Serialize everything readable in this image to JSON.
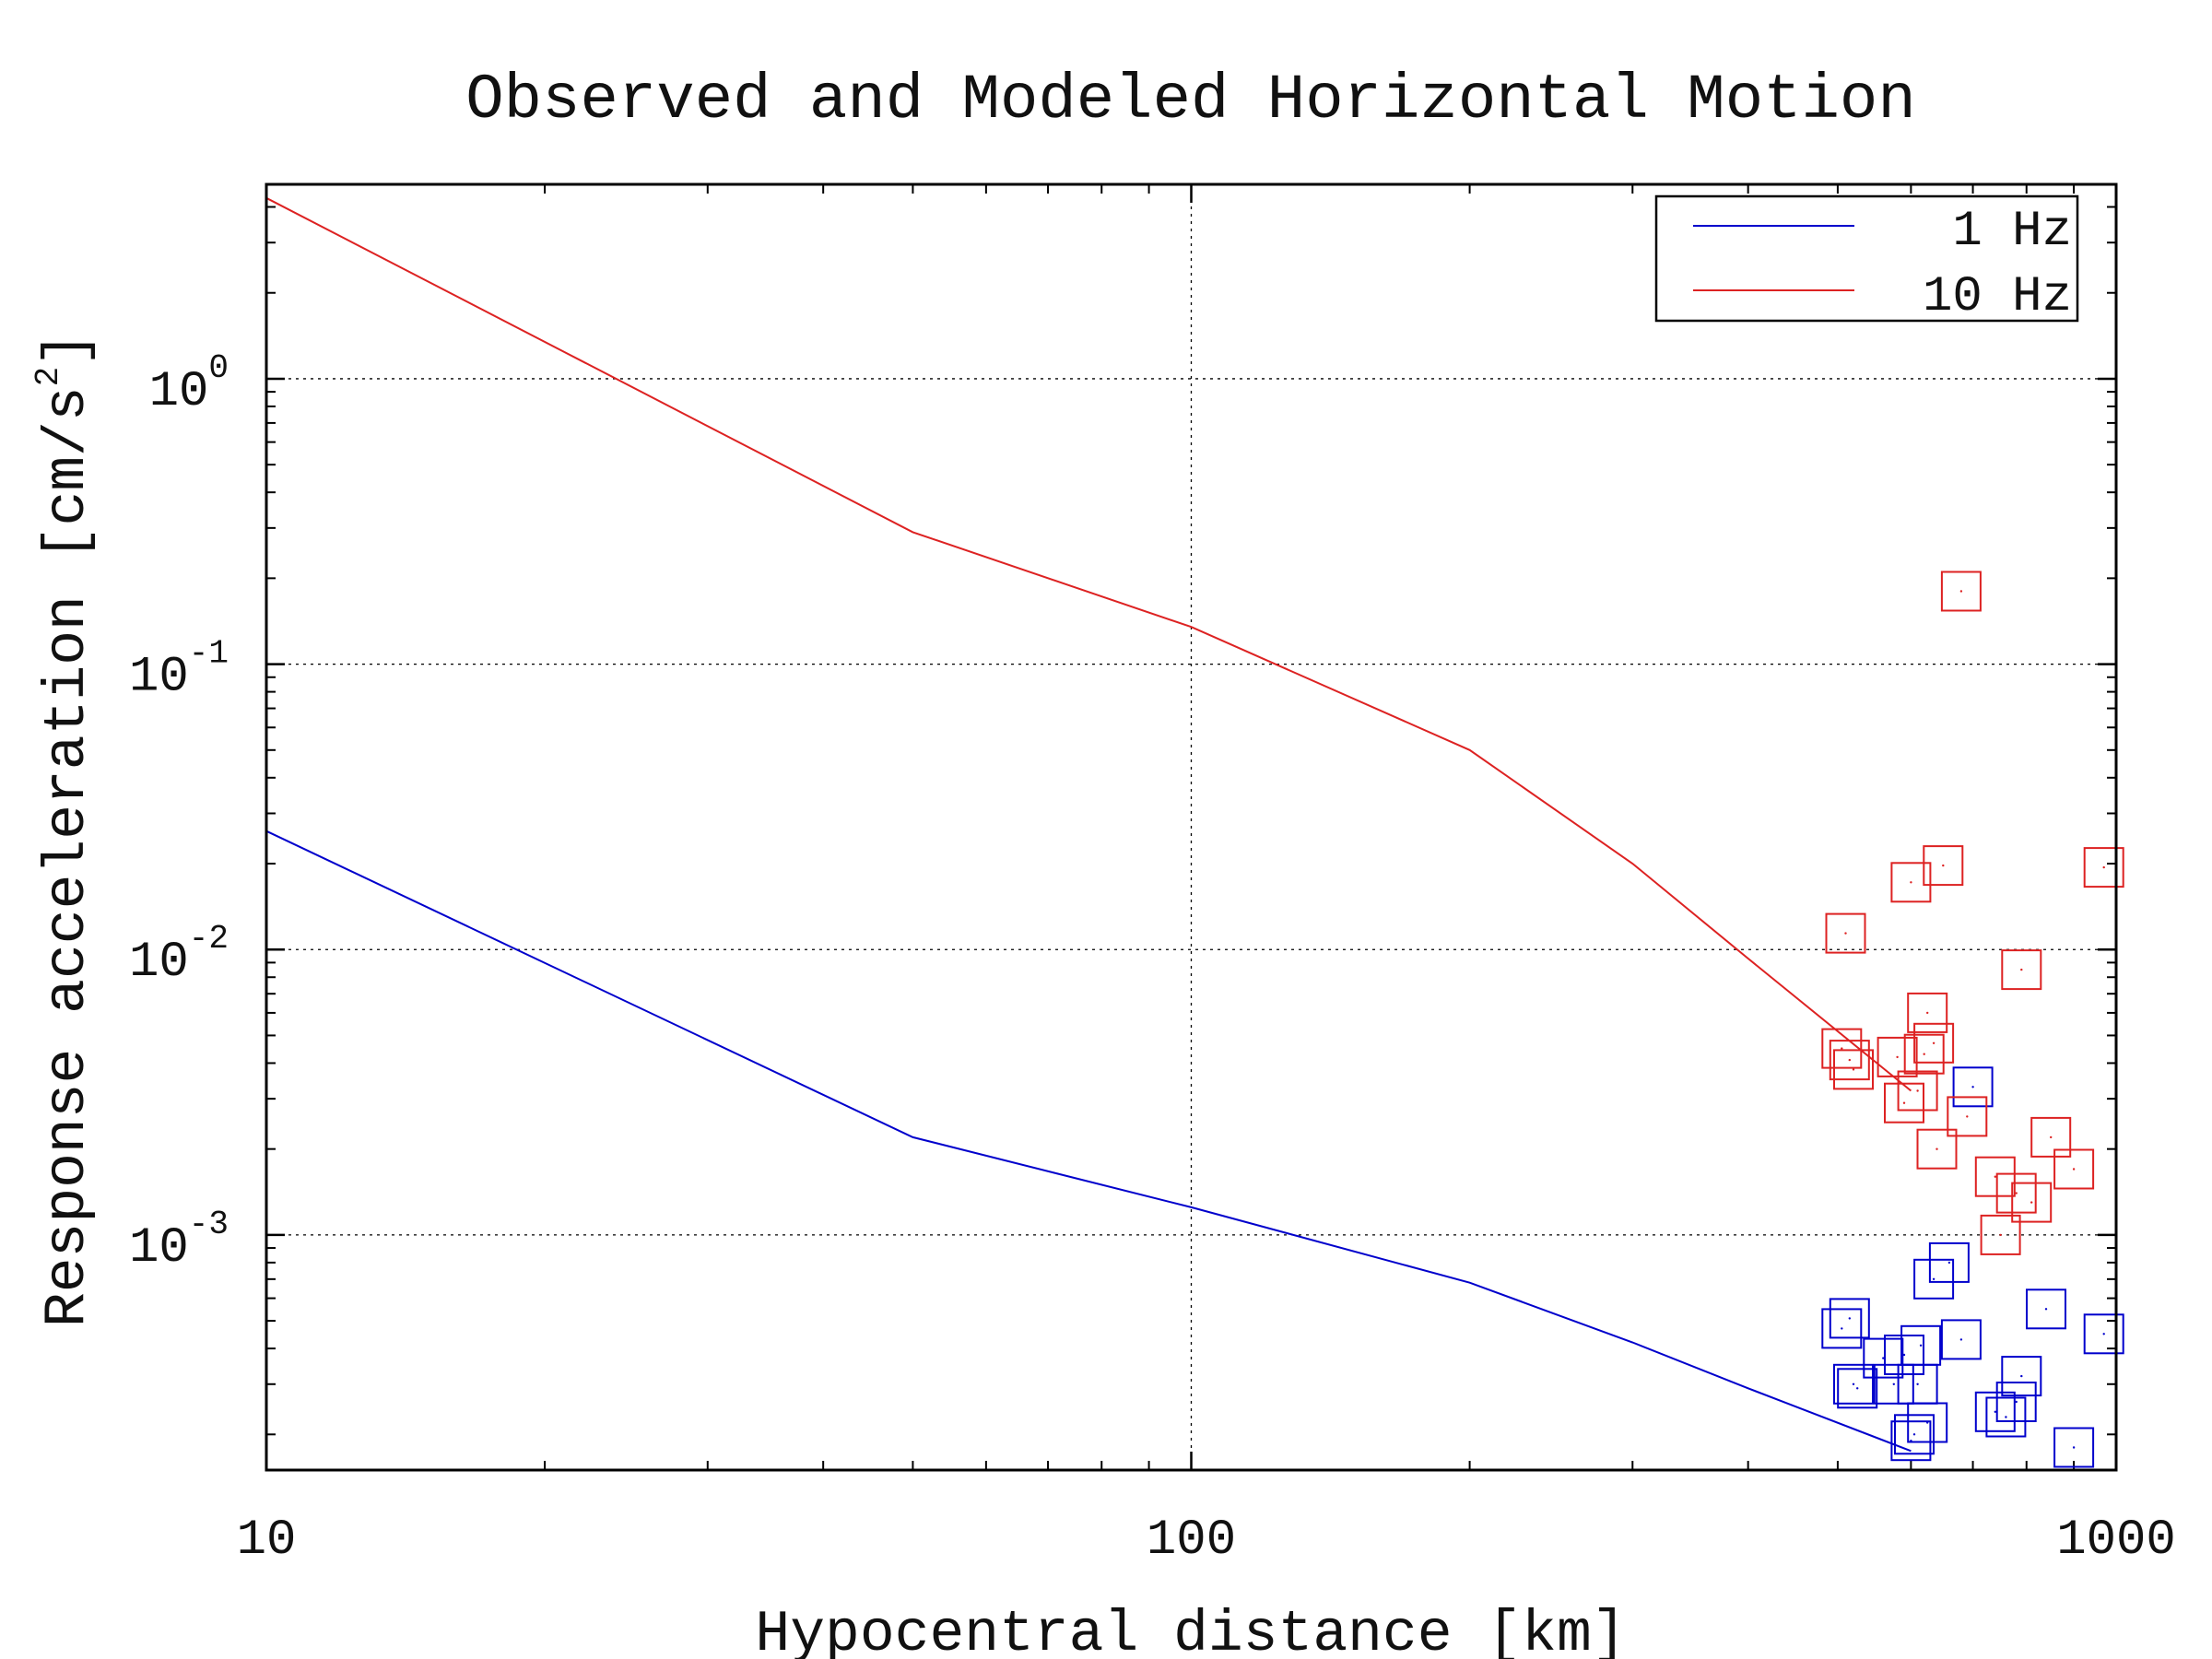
{
  "chart_data": {
    "type": "scatter",
    "title": "Observed and Modeled Horizontal Motion",
    "xlabel": "Hypocentral distance [km]",
    "ylabel_prefix": "Response acceleration [cm/s",
    "ylabel_sup": "2",
    "ylabel_suffix": "]",
    "xscale": "log",
    "yscale": "log",
    "xlim": [
      10,
      1000
    ],
    "ylim": [
      0.00015,
      4.8
    ],
    "grid": true,
    "legend_position": "top-right",
    "x_ticks": [
      {
        "value": 10,
        "label": "10"
      },
      {
        "value": 100,
        "label": "100"
      },
      {
        "value": 1000,
        "label": "1000"
      }
    ],
    "y_ticks": [
      {
        "value": 1,
        "base": "10",
        "exp": "0"
      },
      {
        "value": 0.1,
        "base": "10",
        "exp": "-1"
      },
      {
        "value": 0.01,
        "base": "10",
        "exp": "-2"
      },
      {
        "value": 0.001,
        "base": "10",
        "exp": "-3"
      }
    ],
    "series": [
      {
        "name": "1 Hz",
        "color": "#0000cc",
        "line": {
          "x": [
            10,
            50,
            100,
            200,
            300,
            400,
            600
          ],
          "y": [
            0.026,
            0.0022,
            0.00125,
            0.00068,
            0.00042,
            0.00029,
            0.000175
          ]
        },
        "points": {
          "x": [
            505,
            515,
            520,
            525,
            560,
            575,
            590,
            600,
            605,
            610,
            615,
            625,
            635,
            660,
            680,
            700,
            740,
            760,
            780,
            790,
            840,
            900,
            970
          ],
          "y": [
            0.00047,
            0.00051,
            0.0003,
            0.00029,
            0.00037,
            0.0003,
            0.00038,
            0.00019,
            0.0002,
            0.0003,
            0.00041,
            0.00022,
            0.0007,
            0.0008,
            0.00043,
            0.0033,
            0.00024,
            0.00023,
            0.00026,
            0.00032,
            0.00055,
            0.00018,
            0.00045
          ]
        }
      },
      {
        "name": "10 Hz",
        "color": "#dd2222",
        "line": {
          "x": [
            10,
            50,
            100,
            200,
            300,
            400,
            600
          ],
          "y": [
            4.3,
            0.29,
            0.135,
            0.05,
            0.02,
            0.0093,
            0.0032
          ]
        },
        "points": {
          "x": [
            505,
            510,
            515,
            520,
            580,
            590,
            600,
            610,
            620,
            625,
            635,
            640,
            650,
            680,
            690,
            740,
            750,
            780,
            790,
            810,
            850,
            900,
            970
          ],
          "y": [
            0.0045,
            0.0114,
            0.0041,
            0.0038,
            0.0042,
            0.0029,
            0.0172,
            0.0032,
            0.0043,
            0.006,
            0.0047,
            0.002,
            0.0197,
            0.18,
            0.0026,
            0.0016,
            0.001,
            0.0014,
            0.0085,
            0.0013,
            0.0022,
            0.0017,
            0.0194
          ]
        }
      }
    ]
  }
}
